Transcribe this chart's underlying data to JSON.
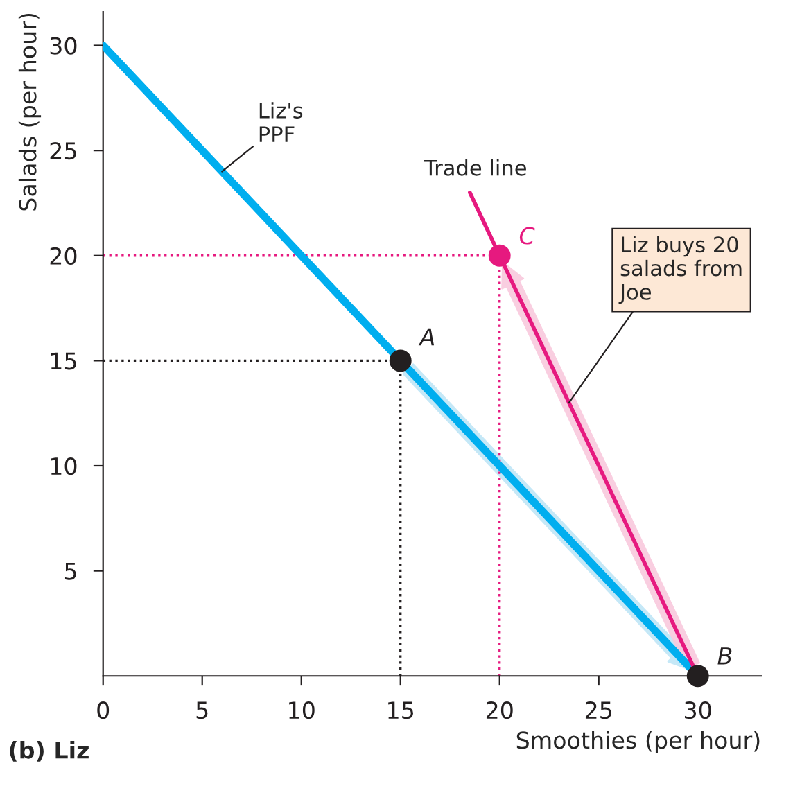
{
  "chart_data": {
    "type": "line",
    "title": "(b) Liz",
    "xlabel": "Smoothies (per hour)",
    "ylabel": "Salads (per hour)",
    "xlim": [
      0,
      33.2
    ],
    "ylim": [
      0,
      31.6
    ],
    "xticks": [
      0,
      5,
      10,
      15,
      20,
      25,
      30
    ],
    "yticks": [
      5,
      10,
      15,
      20,
      25,
      30
    ],
    "grid": false,
    "legend": false,
    "series": [
      {
        "x": [
          0,
          30
        ],
        "values": [
          30,
          0
        ],
        "color": "#00aeef",
        "line_style": "solid",
        "marker": "none"
      },
      {
        "x": [
          18.5,
          30
        ],
        "values": [
          23,
          0
        ],
        "color": "#e6197f",
        "line_style": "solid",
        "marker": "none"
      },
      {
        "type": "line",
        "x": [
          0,
          15
        ],
        "values": [
          15,
          15
        ],
        "color": "#231f20",
        "line_style": "dotted",
        "marker": "none"
      },
      {
        "type": "line",
        "x": [
          15,
          15
        ],
        "values": [
          0,
          15
        ],
        "color": "#231f20",
        "line_style": "dotted",
        "marker": "none"
      },
      {
        "type": "line",
        "x": [
          0,
          20
        ],
        "values": [
          20,
          20
        ],
        "color": "#e6197f",
        "line_style": "dotted",
        "marker": "none"
      },
      {
        "type": "line",
        "x": [
          20,
          20
        ],
        "values": [
          0,
          20
        ],
        "color": "#e6197f",
        "line_style": "dotted",
        "marker": "none"
      },
      {
        "type": "scatter",
        "x": [
          15,
          30
        ],
        "values": [
          15,
          0
        ],
        "color": "#231f20",
        "marker": "circle"
      },
      {
        "type": "scatter",
        "x": [
          20
        ],
        "values": [
          20
        ],
        "color": "#e6197f",
        "marker": "circle"
      }
    ],
    "annotations": [
      {
        "text": "A",
        "x": 15,
        "y": 15
      },
      {
        "text": "B",
        "x": 30,
        "y": 0
      },
      {
        "text": "C",
        "x": 20,
        "y": 20
      },
      {
        "text": "Liz's\nPPF",
        "x": 6,
        "y": 24
      },
      {
        "text": "Trade line",
        "x": 18.7,
        "y": 22.6
      },
      {
        "text": "Liz buys 20\nsalads from\nJoe",
        "x": 23.5,
        "y": 13
      }
    ]
  }
}
